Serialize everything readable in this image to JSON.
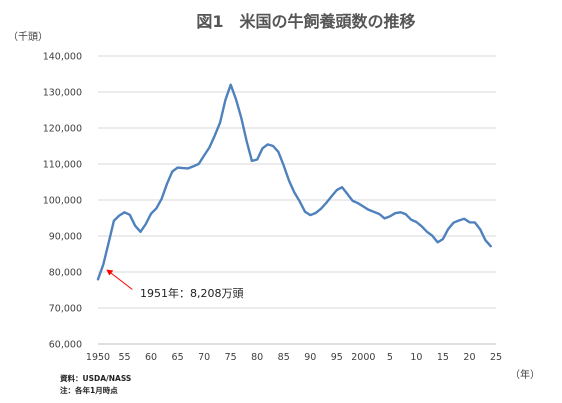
{
  "chart_data": {
    "type": "line",
    "title": "図1　米国の牛飼養頭数の推移",
    "y_unit_label": "（千頭）",
    "x_unit_label": "（年）",
    "ylim": [
      60000,
      140000
    ],
    "y_ticks": [
      "60,000",
      "70,000",
      "80,000",
      "90,000",
      "100,000",
      "110,000",
      "120,000",
      "130,000",
      "140,000"
    ],
    "x_tick_labels": [
      "1950",
      "55",
      "60",
      "65",
      "70",
      "75",
      "80",
      "85",
      "90",
      "95",
      "2000",
      "5",
      "10",
      "15",
      "20",
      "25"
    ],
    "grid": true,
    "annotation": {
      "text": "1951年：8,208万頭",
      "x": 1951,
      "y": 82083,
      "color": "#ff0000"
    },
    "notes": [
      "資料：USDA/NASS",
      "注：各年1月時点"
    ],
    "series": [
      {
        "x": [
          1950,
          1951,
          1952,
          1953,
          1954,
          1955,
          1956,
          1957,
          1958,
          1959,
          1960,
          1961,
          1962,
          1963,
          1964,
          1965,
          1966,
          1967,
          1968,
          1969,
          1970,
          1971,
          1972,
          1973,
          1974,
          1975,
          1976,
          1977,
          1978,
          1979,
          1980,
          1981,
          1982,
          1983,
          1984,
          1985,
          1986,
          1987,
          1988,
          1989,
          1990,
          1991,
          1992,
          1993,
          1994,
          1995,
          1996,
          1997,
          1998,
          1999,
          2000,
          2001,
          2002,
          2003,
          2004,
          2005,
          2006,
          2007,
          2008,
          2009,
          2010,
          2011,
          2012,
          2013,
          2014,
          2015,
          2016,
          2017,
          2018,
          2019,
          2020,
          2021,
          2022,
          2023,
          2024
        ],
        "y": [
          77963,
          82083,
          88072,
          94241,
          95679,
          96592,
          95900,
          92860,
          91176,
          93322,
          96236,
          97700,
          100369,
          104488,
          107903,
          109000,
          108862,
          108783,
          109371,
          110015,
          112369,
          114578,
          117862,
          121539,
          127788,
          132028,
          127980,
          122810,
          116375,
          110864,
          111242,
          114351,
          115444,
          115001,
          113360,
          109582,
          105378,
          102118,
          99622,
          96740,
          95816,
          96393,
          97556,
          99176,
          100988,
          102755,
          103548,
          101656,
          99744,
          99115,
          98199,
          97277,
          96704,
          96100,
          94888,
          95438,
          96342,
          96573,
          96035,
          94521,
          93881,
          92682,
          91160,
          90095,
          88243,
          89143,
          91918,
          93705,
          94298,
          94805,
          93793,
          93790,
          91902,
          88841,
          87157
        ]
      }
    ]
  }
}
